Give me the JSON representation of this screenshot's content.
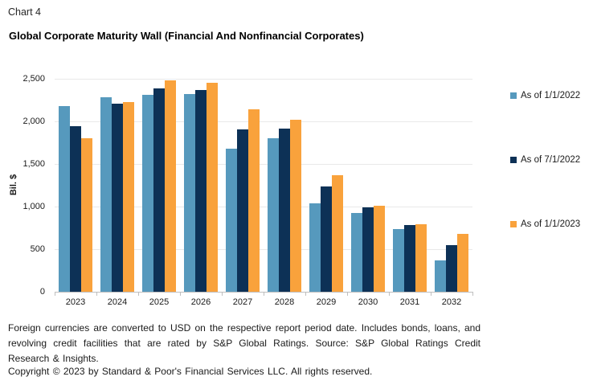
{
  "header": {
    "chart_label": "Chart 4"
  },
  "chart_data": {
    "type": "bar",
    "title": "Global Corporate Maturity Wall (Financial And Nonfinancial Corporates)",
    "categories": [
      "2023",
      "2024",
      "2025",
      "2026",
      "2027",
      "2028",
      "2029",
      "2030",
      "2031",
      "2032"
    ],
    "series": [
      {
        "name": "As of 1/1/2022",
        "color": "#5699BD",
        "values": [
          2180,
          2285,
          2315,
          2325,
          1680,
          1805,
          1035,
          920,
          740,
          365
        ]
      },
      {
        "name": "As of 7/1/2022",
        "color": "#0D3156",
        "values": [
          1945,
          2210,
          2385,
          2370,
          1910,
          1915,
          1240,
          990,
          780,
          550
        ]
      },
      {
        "name": "As of 1/1/2023",
        "color": "#F9A23C",
        "values": [
          1805,
          2225,
          2480,
          2455,
          2140,
          2015,
          1365,
          1010,
          790,
          675
        ]
      }
    ],
    "xlabel": "",
    "ylabel": "Bil. $",
    "ylim": [
      0,
      2500
    ],
    "ytick_values": [
      0,
      500,
      1000,
      1500,
      2000,
      2500
    ],
    "ytick_labels": [
      "0",
      "500",
      "1,000",
      "1,500",
      "2,000",
      "2,500"
    ],
    "grid": true,
    "legend_position": "right"
  },
  "footer": {
    "note": "Foreign currencies are converted to USD on the respective report period date. Includes bonds, loans, and revolving credit facilities that are rated by S&P Global Ratings. Source: S&P Global Ratings Credit Research & Insights.",
    "copyright": "Copyright © 2023 by Standard & Poor's Financial Services LLC. All rights reserved."
  }
}
